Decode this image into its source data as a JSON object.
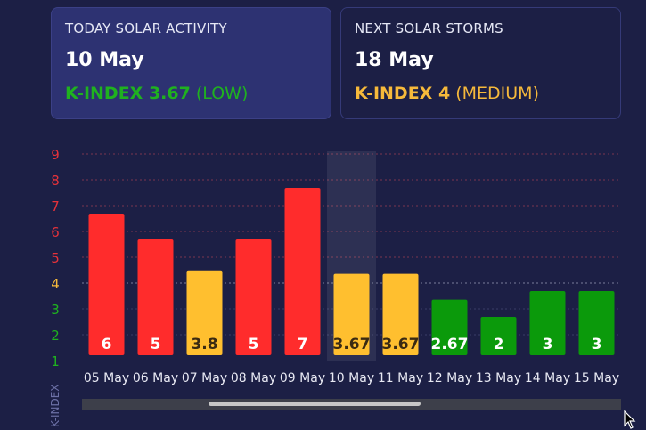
{
  "today": {
    "label": "TODAY SOLAR ACTIVITY",
    "date": "10 May",
    "kindex_label": "K-INDEX 3.67",
    "level": "(LOW)"
  },
  "next": {
    "label": "NEXT SOLAR STORMS",
    "date": "18 May",
    "kindex_label": "K-INDEX 4",
    "level": "(MEDIUM)"
  },
  "colors": {
    "high": "#ff2c2c",
    "medium": "#ffbf2f",
    "low": "#0b9a0b",
    "tick_high": "#e5323a",
    "tick_medium": "#f6b93b",
    "tick_low": "#1fb21f"
  },
  "chart_data": {
    "type": "bar",
    "ylabel": "K-INDEX",
    "ylim": [
      1,
      9
    ],
    "yticks": [
      1,
      2,
      3,
      4,
      5,
      6,
      7,
      8,
      9
    ],
    "categories": [
      "05 May",
      "06 May",
      "07 May",
      "08 May",
      "09 May",
      "10 May",
      "11 May",
      "12 May",
      "13 May",
      "14 May",
      "15 May"
    ],
    "values": [
      6,
      5,
      3.8,
      5,
      7,
      3.67,
      3.67,
      2.67,
      2,
      3,
      3
    ],
    "labels": [
      "6",
      "5",
      "3.8",
      "5",
      "7",
      "3.67",
      "3.67",
      "2.67",
      "2",
      "3",
      "3"
    ],
    "highlight_category": "10 May",
    "grid": true
  }
}
